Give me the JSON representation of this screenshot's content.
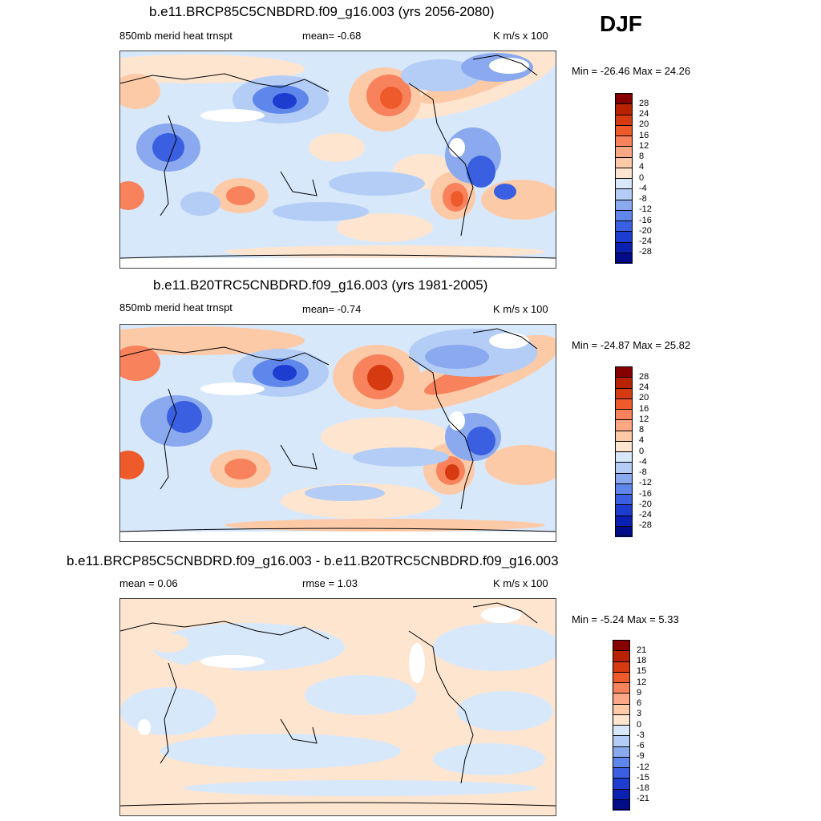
{
  "season": "DJF",
  "panels": [
    {
      "title": "b.e11.BRCP85C5CNBDRD.f09_g16.003 (yrs 2056-2080)",
      "left_label": "850mb merid heat trnspt",
      "mid_label": "mean=  -0.68",
      "units": "K m/s x 100",
      "minmax": "Min = -26.46 Max =  24.26",
      "colorbar_ticks": [
        "28",
        "24",
        "20",
        "16",
        "12",
        "8",
        "4",
        "0",
        "-4",
        "-8",
        "-12",
        "-16",
        "-20",
        "-24",
        "-28"
      ]
    },
    {
      "title": "b.e11.B20TRC5CNBDRD.f09_g16.003 (yrs 1981-2005)",
      "left_label": "850mb merid heat trnspt",
      "mid_label": "mean=  -0.74",
      "units": "K m/s x 100",
      "minmax": "Min = -24.87 Max =  25.82",
      "colorbar_ticks": [
        "28",
        "24",
        "20",
        "16",
        "12",
        "8",
        "4",
        "0",
        "-4",
        "-8",
        "-12",
        "-16",
        "-20",
        "-24",
        "-28"
      ]
    },
    {
      "title": "b.e11.BRCP85C5CNBDRD.f09_g16.003 - b.e11.B20TRC5CNBDRD.f09_g16.003",
      "left_label": "mean =   0.06",
      "mid_label": "rmse =   1.03",
      "units": "K m/s x 100",
      "minmax": "Min =  -5.24 Max =   5.33",
      "colorbar_ticks": [
        "21",
        "18",
        "15",
        "12",
        "9",
        "6",
        "3",
        "0",
        "-3",
        "-6",
        "-9",
        "-12",
        "-15",
        "-18",
        "-21"
      ]
    }
  ],
  "colorbar_colors": [
    "#870000",
    "#b92200",
    "#d63a10",
    "#ef5a2a",
    "#f7825c",
    "#fca884",
    "#fdcaa8",
    "#fee5d0",
    "#d8e8fb",
    "#b4cdf6",
    "#8aa9ef",
    "#5f86ea",
    "#3a5fe0",
    "#1d3cd0",
    "#0a20b0",
    "#000c88"
  ]
}
